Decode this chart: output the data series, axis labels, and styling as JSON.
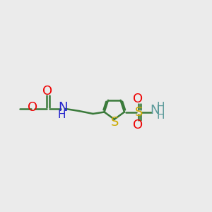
{
  "background_color": "#ebebeb",
  "bond_color": "#3a7a3a",
  "bond_width": 1.8,
  "figsize": [
    3.0,
    3.0
  ],
  "dpi": 100,
  "xlim": [
    0.0,
    7.5
  ],
  "ylim": [
    0.8,
    3.5
  ],
  "colors": {
    "O": "#ee0000",
    "N": "#2222cc",
    "S_thiophene": "#ccaa00",
    "S_sulfonamide": "#ccaa00",
    "N_sulf": "#5a9a9a",
    "H_sulf": "#5a9a9a",
    "bond": "#3a7a3a",
    "methyl": "#3a7a3a"
  }
}
